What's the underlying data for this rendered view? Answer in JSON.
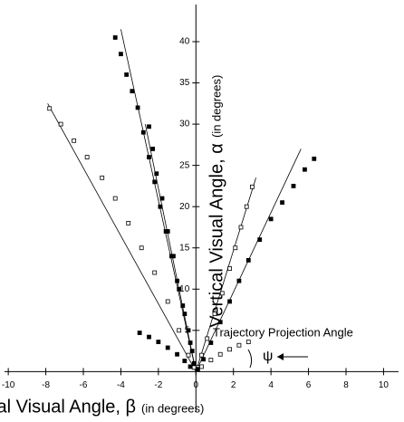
{
  "chart_data": {
    "type": "scatter",
    "x_label": "Lateral Visual Angle, β",
    "x_label_unit": "(in degrees)",
    "y_label": "Vertical Visual Angle, α",
    "y_label_unit": "(in degrees)",
    "annotation": "Trajectory Projection Angle",
    "angle_symbol": "ψ",
    "xlim": [
      -10.2,
      10.8
    ],
    "ylim": [
      -4.9,
      44.5
    ],
    "xticks": [
      -10,
      -8,
      -6,
      -4,
      -2,
      0,
      2,
      4,
      6,
      8,
      10
    ],
    "yticks": [
      5,
      10,
      15,
      20,
      25,
      30,
      35,
      40
    ],
    "color": "#000000",
    "series": [
      {
        "marker": "filled",
        "x": [
          -4.3,
          -4.0,
          -3.7,
          -3.4,
          -3.1,
          -2.8,
          -2.5,
          -2.2,
          -1.9,
          -1.6,
          -1.3,
          -1.0,
          -0.7,
          -0.4,
          -0.2,
          0.0
        ],
        "values": [
          40.5,
          38.5,
          36,
          34,
          32,
          29,
          26,
          23,
          20,
          17,
          14,
          11,
          8,
          5,
          2.5,
          0.5
        ]
      },
      {
        "marker": "filled",
        "x": [
          -2.5,
          -2.3,
          -2.1,
          -1.8,
          -1.5,
          -1.2,
          -0.9,
          -0.6,
          -0.3,
          -0.1
        ],
        "values": [
          29.7,
          27,
          24,
          21,
          17,
          14,
          10,
          7,
          3.5,
          1
        ]
      },
      {
        "marker": "hollow",
        "x": [
          -7.8,
          -7.2,
          -6.5,
          -5.8,
          -5.0,
          -4.3,
          -3.6,
          -2.9,
          -2.2,
          -1.5,
          -0.9,
          -0.4,
          -0.1
        ],
        "values": [
          31.9,
          30,
          28,
          26,
          23.5,
          21,
          18,
          15,
          12,
          8.5,
          5,
          2,
          0.5
        ]
      },
      {
        "marker": "hollow",
        "x": [
          3.0,
          2.7,
          2.4,
          2.1,
          1.8,
          1.4,
          1.0,
          0.6,
          0.3,
          0.1
        ],
        "values": [
          22.4,
          20,
          17.5,
          15,
          12.5,
          9.5,
          7,
          4,
          2,
          0.5
        ]
      },
      {
        "marker": "filled",
        "x": [
          6.3,
          5.8,
          5.2,
          4.6,
          4.0,
          3.4,
          2.8,
          2.3,
          1.8,
          1.3,
          0.8,
          0.4,
          0.1
        ],
        "values": [
          25.8,
          24.5,
          22.5,
          20.5,
          18.5,
          16,
          13.5,
          11,
          8.5,
          6,
          3.5,
          1.5,
          0.3
        ]
      },
      {
        "marker": "filled",
        "x": [
          -3.0,
          -2.5,
          -2.0,
          -1.5,
          -1.0,
          -0.6,
          -0.3
        ],
        "values": [
          4.7,
          4.2,
          3.6,
          2.9,
          2.1,
          1.3,
          0.6
        ]
      },
      {
        "marker": "hollow",
        "x": [
          0.3,
          0.8,
          1.3,
          1.8,
          2.3,
          2.8
        ],
        "values": [
          0.6,
          1.4,
          2.1,
          2.7,
          3.2,
          3.6
        ]
      }
    ],
    "fit_lines": [
      {
        "x": [
          -4.0,
          0
        ],
        "values": [
          41.5,
          0
        ]
      },
      {
        "x": [
          -2.7,
          0
        ],
        "values": [
          30,
          0
        ]
      },
      {
        "x": [
          -7.9,
          0
        ],
        "values": [
          32.5,
          0
        ]
      },
      {
        "x": [
          3.2,
          0
        ],
        "values": [
          23.5,
          0
        ]
      },
      {
        "x": [
          5.6,
          0
        ],
        "values": [
          27,
          0
        ]
      }
    ]
  }
}
